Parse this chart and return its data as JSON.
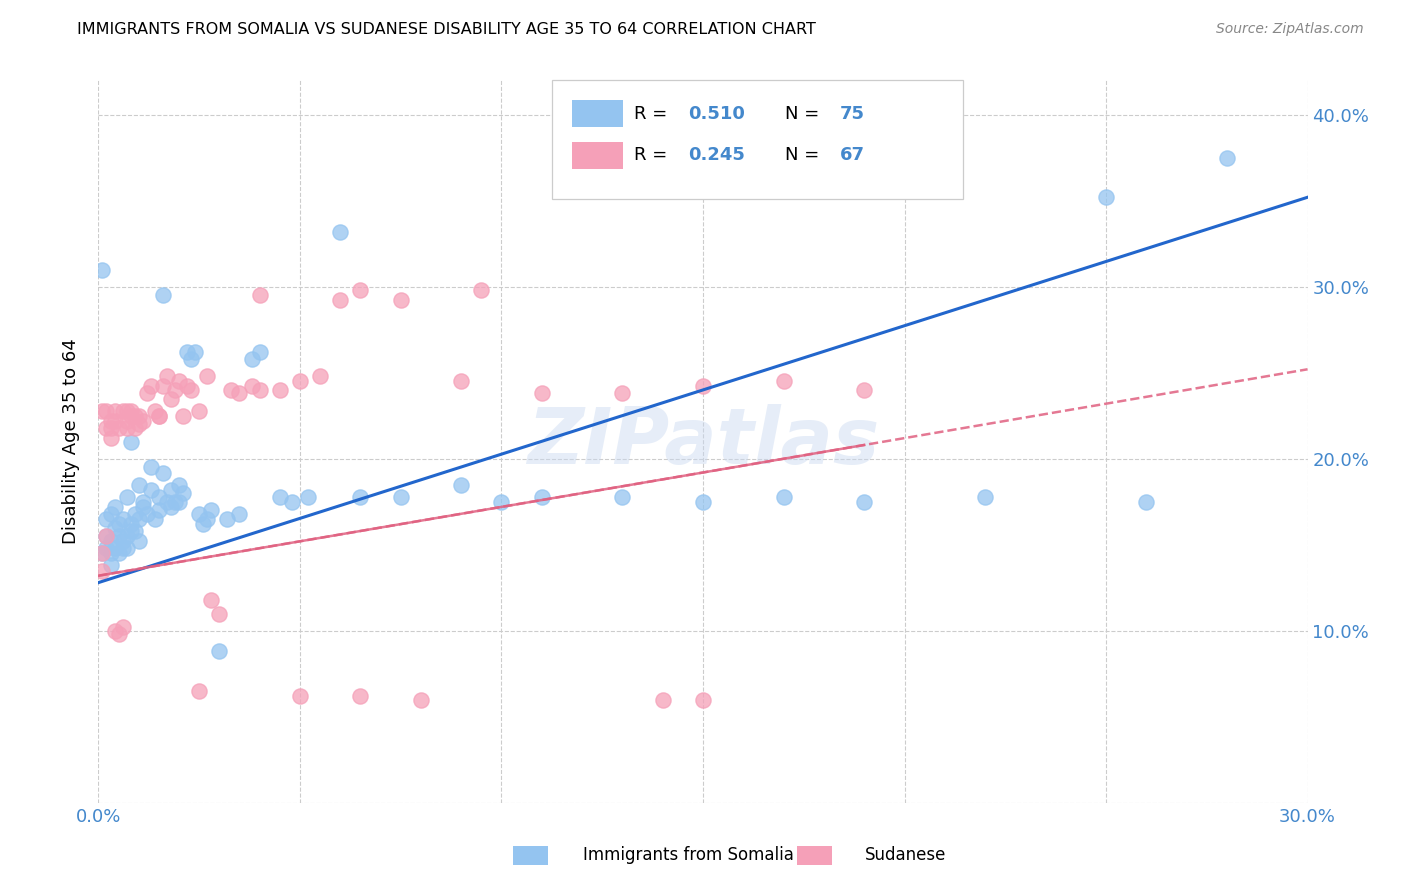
{
  "title": "IMMIGRANTS FROM SOMALIA VS SUDANESE DISABILITY AGE 35 TO 64 CORRELATION CHART",
  "source": "Source: ZipAtlas.com",
  "ylabel": "Disability Age 35 to 64",
  "xlim": [
    0.0,
    0.3
  ],
  "ylim": [
    0.0,
    0.42
  ],
  "somalia_color": "#94c4f0",
  "sudanese_color": "#f5a0b8",
  "somalia_line_color": "#2266cc",
  "sudanese_line_color": "#e06080",
  "R_somalia": 0.51,
  "N_somalia": 75,
  "R_sudanese": 0.245,
  "N_sudanese": 67,
  "watermark": "ZIPatlas",
  "legend_somalia": "Immigrants from Somalia",
  "legend_sudanese": "Sudanese",
  "somalia_line_x0": 0.0,
  "somalia_line_y0": 0.128,
  "somalia_line_x1": 0.3,
  "somalia_line_y1": 0.352,
  "sudanese_line_x0": 0.0,
  "sudanese_line_y0": 0.132,
  "sudanese_line_x1": 0.3,
  "sudanese_line_y1": 0.252,
  "somalia_x": [
    0.001,
    0.001,
    0.002,
    0.002,
    0.002,
    0.003,
    0.003,
    0.003,
    0.003,
    0.004,
    0.004,
    0.004,
    0.005,
    0.005,
    0.005,
    0.006,
    0.006,
    0.006,
    0.007,
    0.007,
    0.007,
    0.008,
    0.008,
    0.008,
    0.009,
    0.009,
    0.01,
    0.01,
    0.01,
    0.011,
    0.011,
    0.012,
    0.013,
    0.013,
    0.014,
    0.015,
    0.015,
    0.016,
    0.016,
    0.017,
    0.018,
    0.018,
    0.019,
    0.02,
    0.02,
    0.021,
    0.022,
    0.023,
    0.024,
    0.025,
    0.026,
    0.027,
    0.028,
    0.03,
    0.032,
    0.035,
    0.038,
    0.04,
    0.045,
    0.048,
    0.052,
    0.06,
    0.065,
    0.075,
    0.09,
    0.1,
    0.11,
    0.13,
    0.15,
    0.17,
    0.19,
    0.22,
    0.25,
    0.26,
    0.28
  ],
  "somalia_y": [
    0.145,
    0.31,
    0.148,
    0.165,
    0.155,
    0.152,
    0.168,
    0.145,
    0.138,
    0.172,
    0.16,
    0.148,
    0.145,
    0.162,
    0.155,
    0.152,
    0.148,
    0.165,
    0.178,
    0.155,
    0.148,
    0.162,
    0.21,
    0.158,
    0.168,
    0.158,
    0.152,
    0.165,
    0.185,
    0.172,
    0.175,
    0.168,
    0.182,
    0.195,
    0.165,
    0.178,
    0.17,
    0.295,
    0.192,
    0.175,
    0.182,
    0.172,
    0.175,
    0.185,
    0.175,
    0.18,
    0.262,
    0.258,
    0.262,
    0.168,
    0.162,
    0.165,
    0.17,
    0.088,
    0.165,
    0.168,
    0.258,
    0.262,
    0.178,
    0.175,
    0.178,
    0.332,
    0.178,
    0.178,
    0.185,
    0.175,
    0.178,
    0.178,
    0.175,
    0.178,
    0.175,
    0.178,
    0.352,
    0.175,
    0.375
  ],
  "sudanese_x": [
    0.001,
    0.001,
    0.001,
    0.002,
    0.002,
    0.002,
    0.003,
    0.003,
    0.003,
    0.004,
    0.004,
    0.004,
    0.005,
    0.005,
    0.006,
    0.006,
    0.007,
    0.007,
    0.007,
    0.008,
    0.008,
    0.009,
    0.009,
    0.01,
    0.01,
    0.011,
    0.012,
    0.013,
    0.014,
    0.015,
    0.015,
    0.016,
    0.017,
    0.018,
    0.019,
    0.02,
    0.021,
    0.022,
    0.023,
    0.025,
    0.025,
    0.027,
    0.028,
    0.03,
    0.033,
    0.035,
    0.038,
    0.04,
    0.045,
    0.05,
    0.055,
    0.06,
    0.065,
    0.075,
    0.09,
    0.11,
    0.13,
    0.15,
    0.17,
    0.19,
    0.05,
    0.065,
    0.14,
    0.04,
    0.15,
    0.095,
    0.08
  ],
  "sudanese_y": [
    0.145,
    0.228,
    0.135,
    0.218,
    0.228,
    0.155,
    0.222,
    0.218,
    0.212,
    0.222,
    0.1,
    0.228,
    0.218,
    0.098,
    0.228,
    0.102,
    0.228,
    0.222,
    0.218,
    0.225,
    0.228,
    0.225,
    0.218,
    0.22,
    0.225,
    0.222,
    0.238,
    0.242,
    0.228,
    0.225,
    0.225,
    0.242,
    0.248,
    0.235,
    0.24,
    0.245,
    0.225,
    0.242,
    0.24,
    0.228,
    0.065,
    0.248,
    0.118,
    0.11,
    0.24,
    0.238,
    0.242,
    0.24,
    0.24,
    0.245,
    0.248,
    0.292,
    0.298,
    0.292,
    0.245,
    0.238,
    0.238,
    0.242,
    0.245,
    0.24,
    0.062,
    0.062,
    0.06,
    0.295,
    0.06,
    0.298,
    0.06
  ]
}
